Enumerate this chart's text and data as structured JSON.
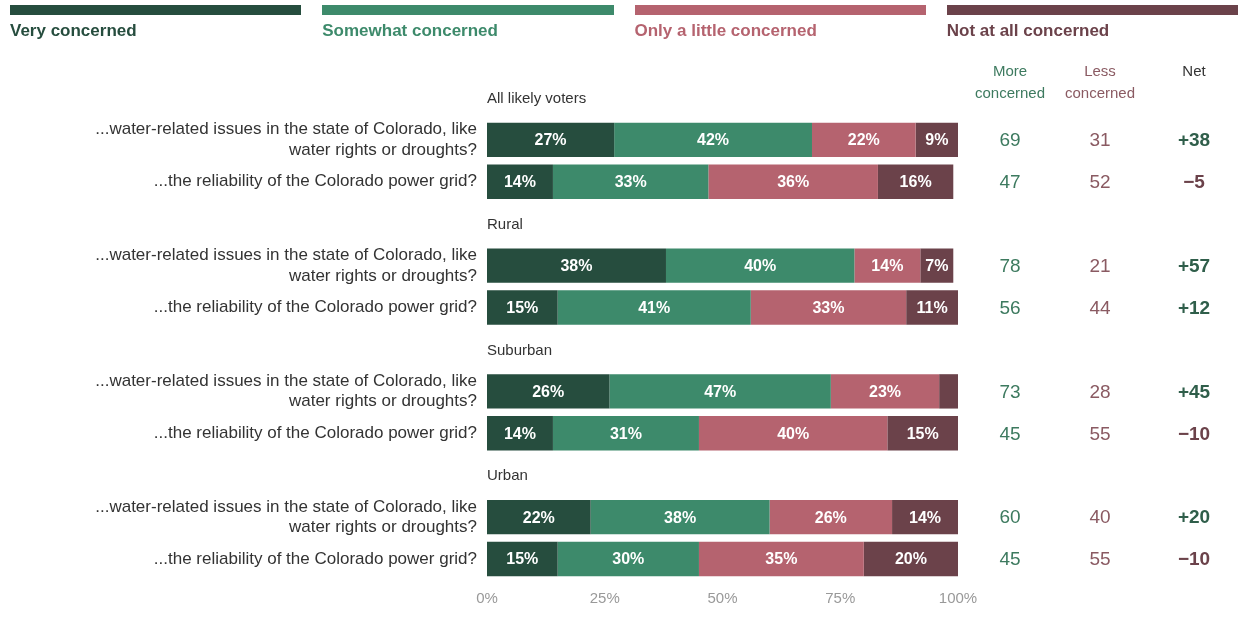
{
  "chart_data": {
    "type": "bar",
    "orientation": "horizontal",
    "stacked": true,
    "legend": "top",
    "grid": false,
    "categories": [
      "All likely voters",
      "...water-related issues in the state of Colorado, like water rights or droughts?",
      "...the reliability of the Colorado power grid?",
      "Rural",
      "...water-related issues in the state of Colorado, like water rights or droughts?",
      "...the reliability of the Colorado power grid?",
      "Suburban",
      "...water-related issues in the state of Colorado, like water rights or droughts?",
      "...the reliability of the Colorado power grid?",
      "Urban",
      "...water-related issues in the state of Colorado, like water rights or droughts?",
      "...the reliability of the Colorado power grid?"
    ],
    "xlim": [
      0,
      100
    ],
    "xticks": [
      {
        "value": 0,
        "label": "0%"
      },
      {
        "value": 25,
        "label": "25%"
      },
      {
        "value": 50,
        "label": "50%"
      },
      {
        "value": 75,
        "label": "75%"
      },
      {
        "value": 100,
        "label": "100%"
      }
    ],
    "series": [
      {
        "name": "Very concerned",
        "color": "#264d3e",
        "values": [
          null,
          27,
          14,
          null,
          38,
          15,
          null,
          26,
          14,
          null,
          22,
          15
        ],
        "value_labels": [
          null,
          "27%",
          "14%",
          null,
          "38%",
          "15%",
          null,
          "26%",
          "14%",
          null,
          "22%",
          "15%"
        ]
      },
      {
        "name": "Somewhat concerned",
        "color": "#3d8a6b",
        "values": [
          null,
          42,
          33,
          null,
          40,
          41,
          null,
          47,
          31,
          null,
          38,
          30
        ],
        "value_labels": [
          null,
          "42%",
          "33%",
          null,
          "40%",
          "41%",
          null,
          "47%",
          "31%",
          null,
          "38%",
          "30%"
        ]
      },
      {
        "name": "Only a little concerned",
        "color": "#b5636f",
        "values": [
          null,
          22,
          36,
          null,
          14,
          33,
          null,
          23,
          40,
          null,
          26,
          35
        ],
        "value_labels": [
          null,
          "22%",
          "36%",
          null,
          "14%",
          "33%",
          null,
          "23%",
          "40%",
          null,
          "26%",
          "35%"
        ]
      },
      {
        "name": "Not at all concerned",
        "color": "#6b424a",
        "values": [
          null,
          9,
          16,
          null,
          7,
          11,
          null,
          4,
          15,
          null,
          14,
          20
        ],
        "value_labels": [
          null,
          "9%",
          "16%",
          null,
          "7%",
          "11%",
          null,
          null,
          "15%",
          null,
          "14%",
          "20%"
        ]
      }
    ],
    "annotations": [
      "More concerned",
      "Less concerned",
      "Net",
      "69",
      "31",
      "+38",
      "47",
      "52",
      "−5",
      "78",
      "21",
      "+57",
      "56",
      "44",
      "+12",
      "73",
      "28",
      "+45",
      "45",
      "55",
      "−10",
      "60",
      "40",
      "+20",
      "45",
      "55",
      "−10"
    ]
  }
}
